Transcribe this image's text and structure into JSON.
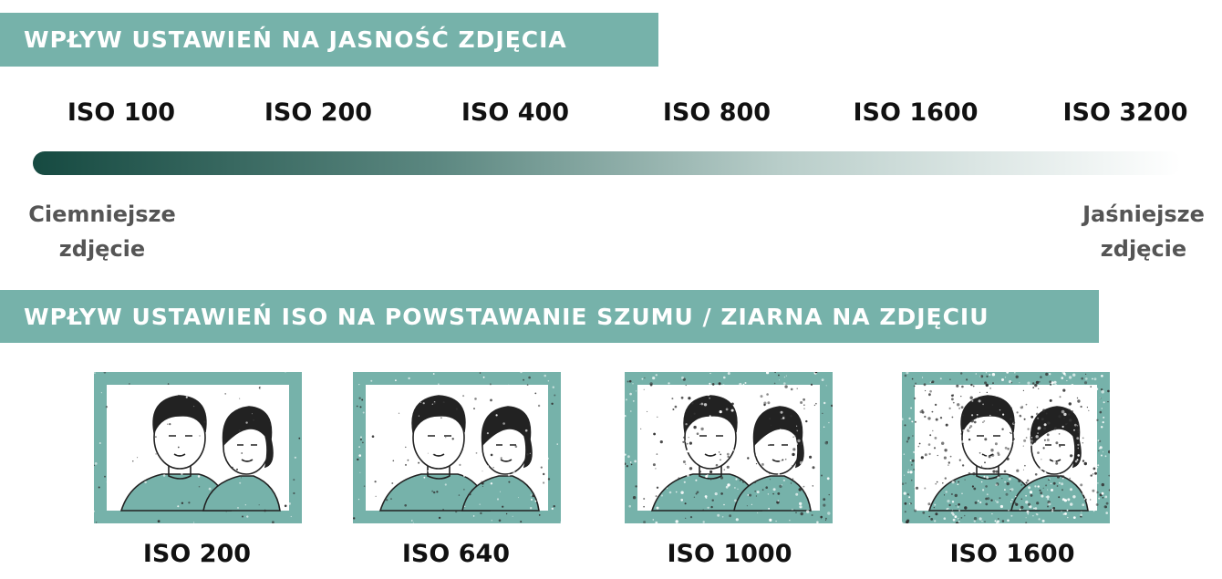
{
  "brightness": {
    "title": "WPŁYW USTAWIEŃ NA JASNOŚĆ ZDJĘCIA",
    "iso_values": [
      "ISO 100",
      "ISO 200",
      "ISO 400",
      "ISO 800",
      "ISO 1600",
      "ISO 3200"
    ],
    "left_label": {
      "line1": "Ciemniejsze",
      "line2": "zdjęcie"
    },
    "right_label": {
      "line1": "Jaśniejsze",
      "line2": "zdjęcie"
    },
    "gradient_colors": [
      "#164a41",
      "#ffffff"
    ]
  },
  "noise": {
    "title": "WPŁYW USTAWIEŃ ISO NA POWSTAWANIE SZUMU / ZIARNA NA ZDJĘCIU",
    "photos": [
      {
        "label": "ISO 200"
      },
      {
        "label": "ISO 640"
      },
      {
        "label": "ISO 1000"
      },
      {
        "label": "ISO 1600"
      }
    ]
  },
  "colors": {
    "accent": "#76b2aa",
    "dark": "#164a41"
  }
}
